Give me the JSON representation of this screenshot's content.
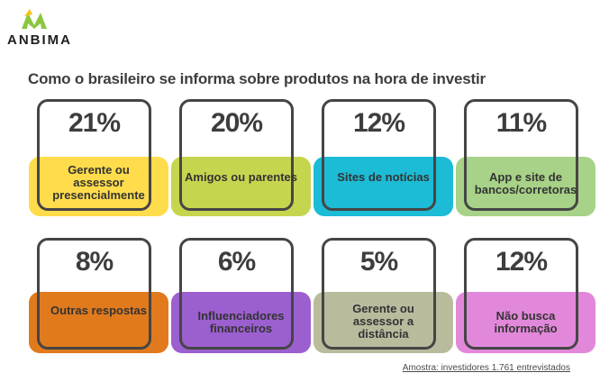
{
  "brand": {
    "name": "ANBIMA",
    "logo_color": "#8cc63f",
    "logo_accent": "#f7c21b"
  },
  "title": "Como o brasileiro se informa sobre produtos na hora de investir",
  "cards": [
    {
      "value": "21%",
      "label": "Gerente ou assessor presencialmente",
      "color": "#fedc4c"
    },
    {
      "value": "20%",
      "label": "Amigos ou parentes",
      "color": "#c6d54e"
    },
    {
      "value": "12%",
      "label": "Sites de notícias",
      "color": "#1cbbd6"
    },
    {
      "value": "11%",
      "label": "App e site de bancos/corretoras",
      "color": "#a7d287"
    },
    {
      "value": "8%",
      "label": "Outras respostas",
      "color": "#e07a1d"
    },
    {
      "value": "6%",
      "label": "Influenciadores financeiros",
      "color": "#9c5fcf"
    },
    {
      "value": "5%",
      "label": "Gerente ou assessor a distância",
      "color": "#b9bb9d"
    },
    {
      "value": "12%",
      "label": "Não busca informação",
      "color": "#e288da"
    }
  ],
  "footnote": "Amostra: investidores 1.761 entrevistados"
}
